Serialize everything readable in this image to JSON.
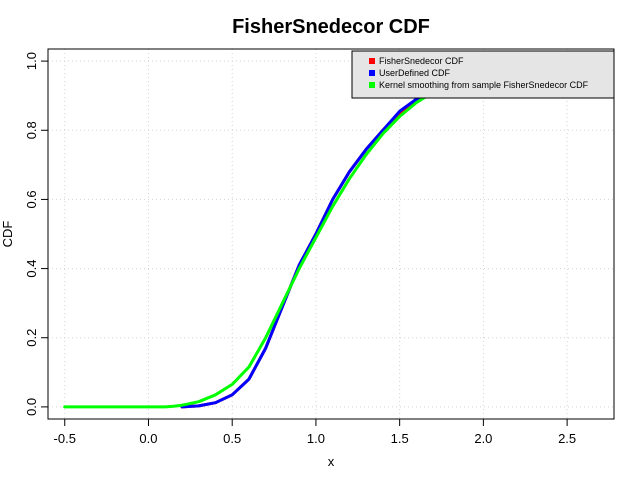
{
  "chart_data": {
    "type": "line",
    "title": "FisherSnedecor CDF",
    "xlabel": "x",
    "ylabel": "CDF",
    "xlim": [
      -0.6,
      2.78
    ],
    "ylim": [
      -0.035,
      1.035
    ],
    "xticks": [
      -0.5,
      0.0,
      0.5,
      1.0,
      1.5,
      2.0,
      2.5
    ],
    "xtick_labels": [
      "-0.5",
      "0.0",
      "0.5",
      "1.0",
      "1.5",
      "2.0",
      "2.5"
    ],
    "yticks": [
      0.0,
      0.2,
      0.4,
      0.6,
      0.8,
      1.0
    ],
    "ytick_labels": [
      "0.0",
      "0.2",
      "0.4",
      "0.6",
      "0.8",
      "1.0"
    ],
    "grid": true,
    "legend_position": "top-right",
    "series": [
      {
        "name": "FisherSnedecor CDF",
        "color": "#ff0000",
        "points": [
          [
            0.2,
            0.0
          ],
          [
            0.3,
            0.003
          ],
          [
            0.4,
            0.012
          ],
          [
            0.5,
            0.035
          ],
          [
            0.6,
            0.08
          ],
          [
            0.7,
            0.17
          ],
          [
            0.8,
            0.29
          ],
          [
            0.9,
            0.41
          ],
          [
            1.0,
            0.5
          ],
          [
            1.1,
            0.6
          ],
          [
            1.2,
            0.68
          ],
          [
            1.3,
            0.745
          ],
          [
            1.4,
            0.8
          ],
          [
            1.5,
            0.85
          ],
          [
            1.6,
            0.885
          ],
          [
            1.7,
            0.91
          ]
        ]
      },
      {
        "name": "UserDefined CDF",
        "color": "#0000ff",
        "points": [
          [
            0.2,
            0.0
          ],
          [
            0.3,
            0.003
          ],
          [
            0.4,
            0.012
          ],
          [
            0.5,
            0.035
          ],
          [
            0.6,
            0.08
          ],
          [
            0.7,
            0.17
          ],
          [
            0.8,
            0.29
          ],
          [
            0.9,
            0.41
          ],
          [
            1.0,
            0.5
          ],
          [
            1.1,
            0.6
          ],
          [
            1.2,
            0.68
          ],
          [
            1.3,
            0.745
          ],
          [
            1.4,
            0.8
          ],
          [
            1.5,
            0.855
          ],
          [
            1.6,
            0.89
          ],
          [
            1.7,
            0.915
          ]
        ]
      },
      {
        "name": "Kernel smoothing from sample FisherSnedecor CDF",
        "color": "#00ff00",
        "points": [
          [
            -0.5,
            0.0
          ],
          [
            0.0,
            0.0
          ],
          [
            0.1,
            0.0
          ],
          [
            0.15,
            0.002
          ],
          [
            0.2,
            0.005
          ],
          [
            0.3,
            0.015
          ],
          [
            0.4,
            0.035
          ],
          [
            0.5,
            0.065
          ],
          [
            0.6,
            0.115
          ],
          [
            0.7,
            0.2
          ],
          [
            0.8,
            0.3
          ],
          [
            0.9,
            0.4
          ],
          [
            1.0,
            0.49
          ],
          [
            1.1,
            0.58
          ],
          [
            1.2,
            0.66
          ],
          [
            1.3,
            0.73
          ],
          [
            1.4,
            0.79
          ],
          [
            1.5,
            0.84
          ],
          [
            1.6,
            0.88
          ],
          [
            1.7,
            0.91
          ]
        ]
      }
    ]
  }
}
